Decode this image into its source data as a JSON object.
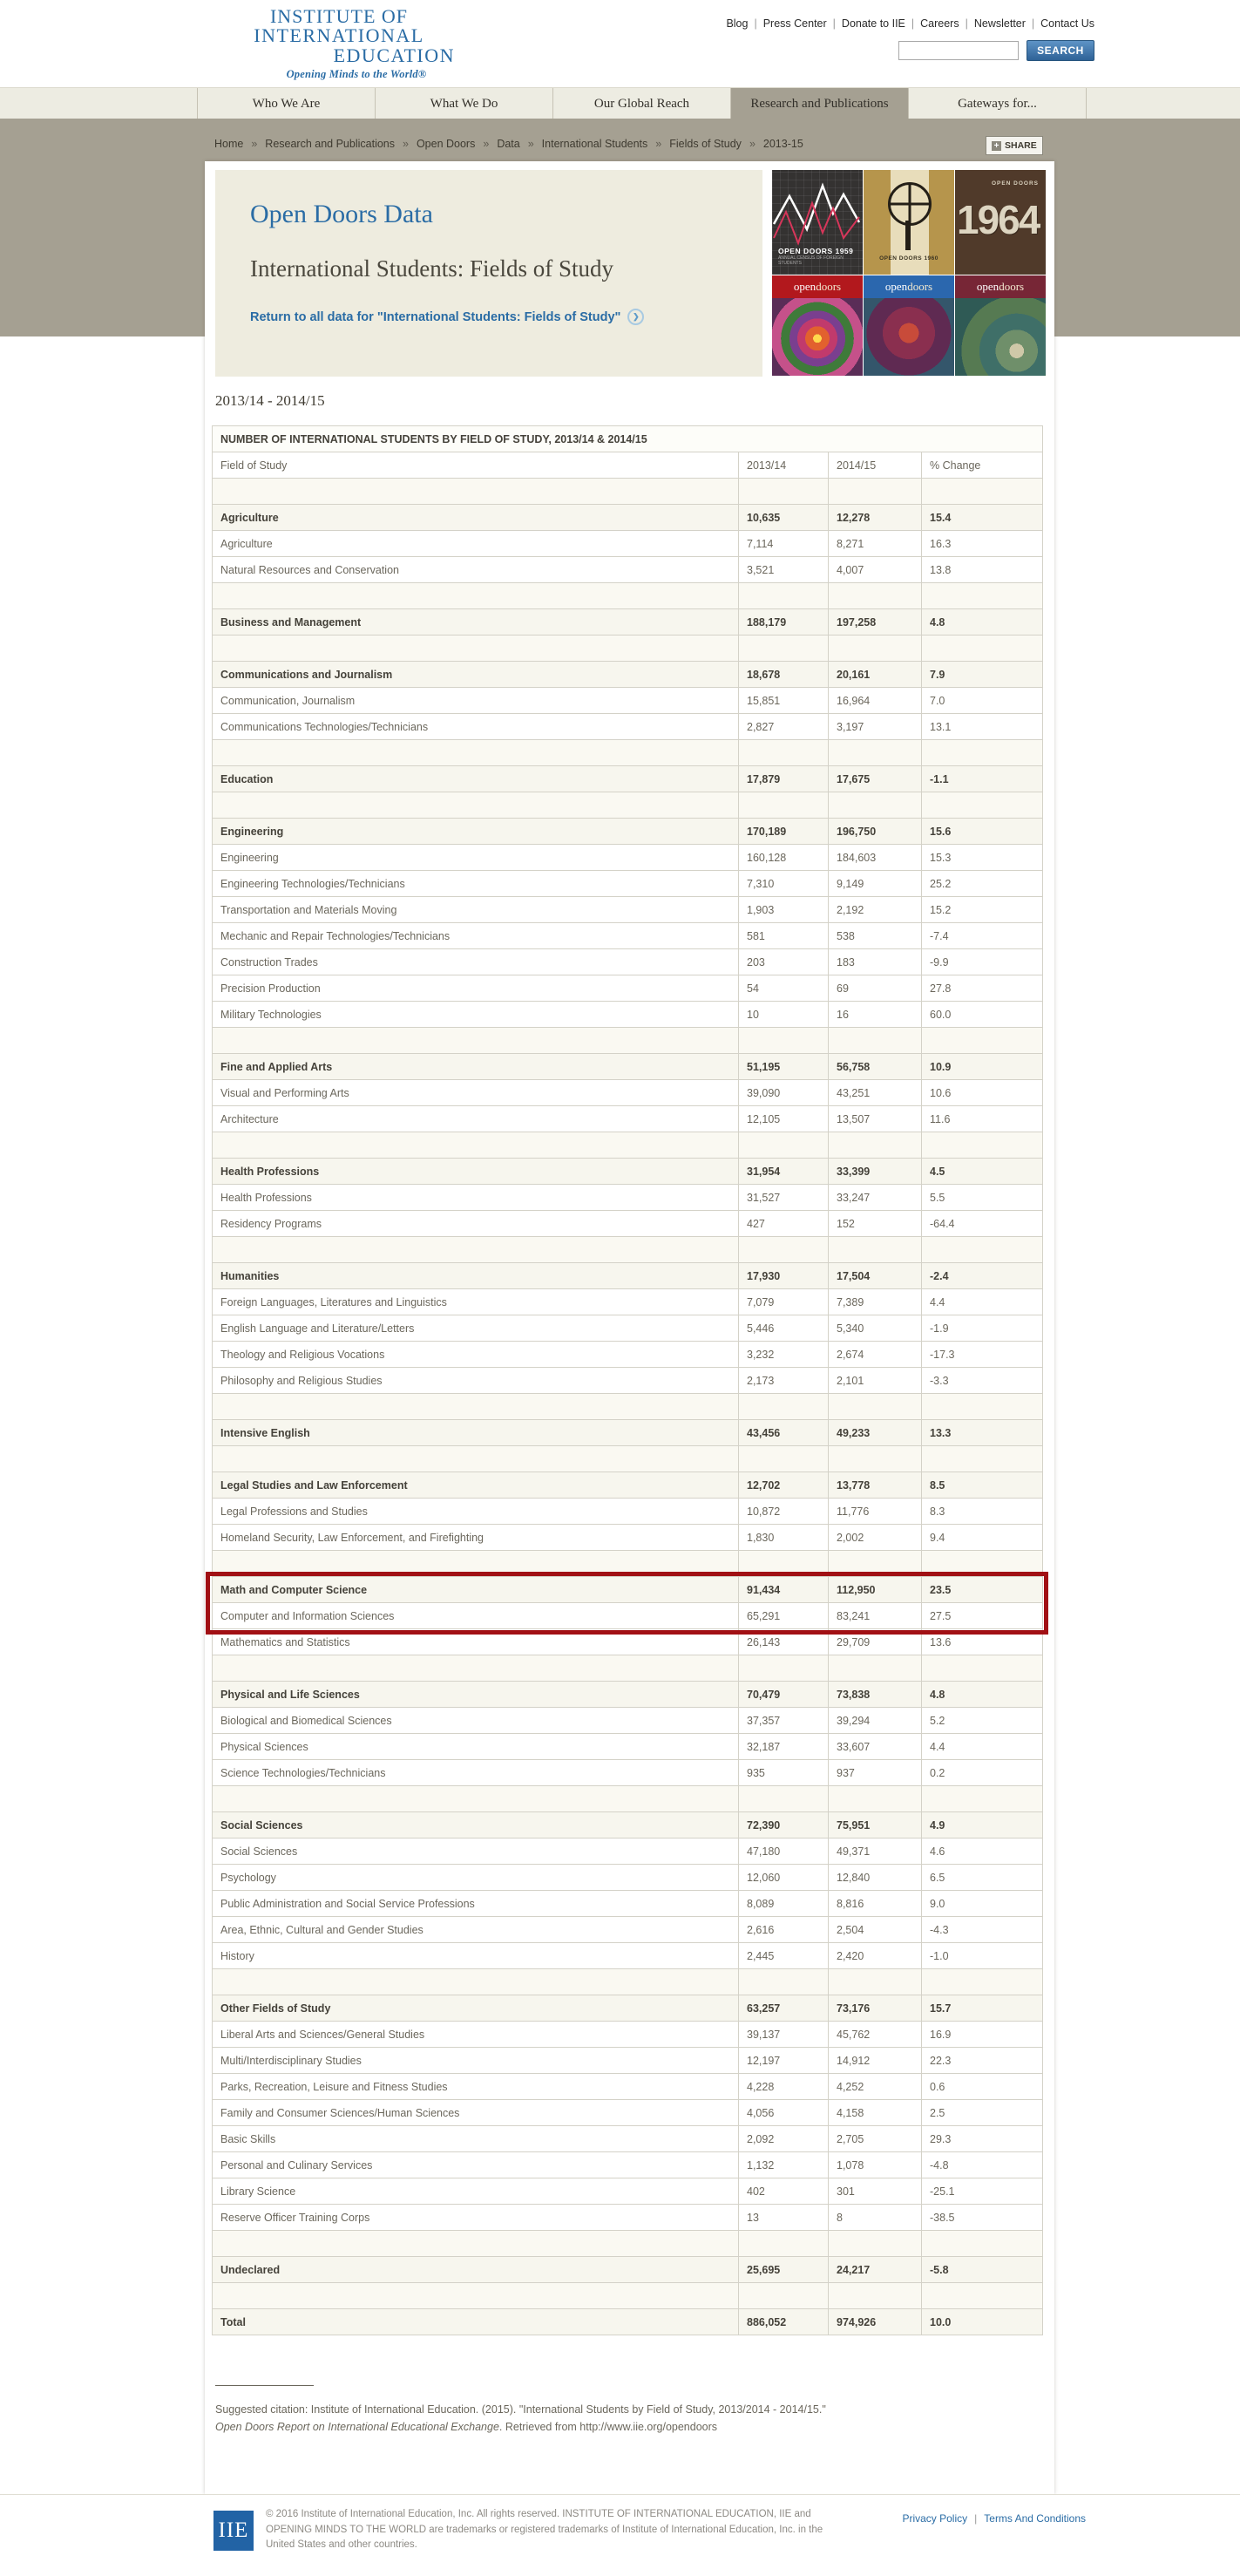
{
  "colors": {
    "accent_blue": "#2a6ca5",
    "band_taupe": "#a5a092",
    "highlight_red": "#a11014",
    "search_button_blue": "#2f6297",
    "hero_cream": "#eeecdf"
  },
  "logo": {
    "line1": "INSTITUTE OF",
    "line2": "INTERNATIONAL",
    "line3": "EDUCATION",
    "tagline": "Opening Minds to the World®"
  },
  "utility_nav": {
    "items": [
      {
        "label": "Blog"
      },
      {
        "label": "Press Center"
      },
      {
        "label": "Donate to IIE"
      },
      {
        "label": "Careers"
      },
      {
        "label": "Newsletter"
      },
      {
        "label": "Contact Us"
      }
    ]
  },
  "search": {
    "button_label": "SEARCH",
    "value": ""
  },
  "main_nav": {
    "items": [
      {
        "label": "Who We Are",
        "active": false
      },
      {
        "label": "What We Do",
        "active": false
      },
      {
        "label": "Our Global Reach",
        "active": false
      },
      {
        "label": "Research and Publications",
        "active": true
      },
      {
        "label": "Gateways for...",
        "active": false
      }
    ]
  },
  "breadcrumb": {
    "items": [
      {
        "label": "Home"
      },
      {
        "label": "Research and Publications"
      },
      {
        "label": "Open Doors"
      },
      {
        "label": "Data"
      },
      {
        "label": "International Students"
      },
      {
        "label": "Fields of Study"
      },
      {
        "label": "2013-15"
      }
    ]
  },
  "share": {
    "plus": "+",
    "label": "SHARE"
  },
  "hero": {
    "title": "Open Doors Data",
    "subtitle": "International Students: Fields of Study",
    "return_link": "Return to all data for \"International Students: Fields of Study\"",
    "arrow": "❯"
  },
  "covers": {
    "c1": {
      "label": "OPEN DOORS 1959",
      "sub": "ANNUAL CENSUS OF FOREIGN STUDENTS"
    },
    "c2": {
      "label": "OPEN DOORS 1960"
    },
    "c3": {
      "top": "OPEN DOORS",
      "big": "1964"
    },
    "c4": {
      "w1": "open",
      "w2": "doors"
    },
    "c5": {
      "w1": "open",
      "w2": "doors"
    },
    "c6": {
      "w1": "open",
      "w2": "doors"
    }
  },
  "year_heading": "2013/14 - 2014/15",
  "table": {
    "title": "NUMBER OF INTERNATIONAL STUDENTS BY FIELD OF STUDY, 2013/14 & 2014/15",
    "columns": [
      "Field of Study",
      "2013/14",
      "2014/15",
      "% Change"
    ],
    "rows": [
      {
        "type": "empty",
        "field": "",
        "y1": "",
        "y2": "",
        "chg": ""
      },
      {
        "type": "section",
        "field": "Agriculture",
        "y1": "10,635",
        "y2": "12,278",
        "chg": "15.4"
      },
      {
        "type": "sub",
        "field": "Agriculture",
        "y1": "7,114",
        "y2": "8,271",
        "chg": "16.3"
      },
      {
        "type": "sub",
        "field": "Natural Resources and Conservation",
        "y1": "3,521",
        "y2": "4,007",
        "chg": "13.8"
      },
      {
        "type": "empty",
        "field": "",
        "y1": "",
        "y2": "",
        "chg": ""
      },
      {
        "type": "section",
        "field": "Business and Management",
        "y1": "188,179",
        "y2": "197,258",
        "chg": "4.8"
      },
      {
        "type": "empty",
        "field": "",
        "y1": "",
        "y2": "",
        "chg": ""
      },
      {
        "type": "section",
        "field": "Communications and Journalism",
        "y1": "18,678",
        "y2": "20,161",
        "chg": "7.9"
      },
      {
        "type": "sub",
        "field": "Communication, Journalism",
        "y1": "15,851",
        "y2": "16,964",
        "chg": "7.0"
      },
      {
        "type": "sub",
        "field": "Communications Technologies/Technicians",
        "y1": "2,827",
        "y2": "3,197",
        "chg": "13.1"
      },
      {
        "type": "empty",
        "field": "",
        "y1": "",
        "y2": "",
        "chg": ""
      },
      {
        "type": "section",
        "field": "Education",
        "y1": "17,879",
        "y2": "17,675",
        "chg": "-1.1"
      },
      {
        "type": "empty",
        "field": "",
        "y1": "",
        "y2": "",
        "chg": ""
      },
      {
        "type": "section",
        "field": "Engineering",
        "y1": "170,189",
        "y2": "196,750",
        "chg": "15.6"
      },
      {
        "type": "sub",
        "field": "Engineering",
        "y1": "160,128",
        "y2": "184,603",
        "chg": "15.3"
      },
      {
        "type": "sub",
        "field": "Engineering Technologies/Technicians",
        "y1": "7,310",
        "y2": "9,149",
        "chg": "25.2"
      },
      {
        "type": "sub",
        "field": "Transportation and Materials Moving",
        "y1": "1,903",
        "y2": "2,192",
        "chg": "15.2"
      },
      {
        "type": "sub",
        "field": "Mechanic and Repair Technologies/Technicians",
        "y1": "581",
        "y2": "538",
        "chg": "-7.4"
      },
      {
        "type": "sub",
        "field": "Construction Trades",
        "y1": "203",
        "y2": "183",
        "chg": "-9.9"
      },
      {
        "type": "sub",
        "field": "Precision Production",
        "y1": "54",
        "y2": "69",
        "chg": "27.8"
      },
      {
        "type": "sub",
        "field": "Military Technologies",
        "y1": "10",
        "y2": "16",
        "chg": "60.0"
      },
      {
        "type": "empty",
        "field": "",
        "y1": "",
        "y2": "",
        "chg": ""
      },
      {
        "type": "section",
        "field": "Fine and Applied Arts",
        "y1": "51,195",
        "y2": "56,758",
        "chg": "10.9"
      },
      {
        "type": "sub",
        "field": "Visual and Performing Arts",
        "y1": "39,090",
        "y2": "43,251",
        "chg": "10.6"
      },
      {
        "type": "sub",
        "field": "Architecture",
        "y1": "12,105",
        "y2": "13,507",
        "chg": "11.6"
      },
      {
        "type": "empty",
        "field": "",
        "y1": "",
        "y2": "",
        "chg": ""
      },
      {
        "type": "section",
        "field": "Health Professions",
        "y1": "31,954",
        "y2": "33,399",
        "chg": "4.5"
      },
      {
        "type": "sub",
        "field": "Health Professions",
        "y1": "31,527",
        "y2": "33,247",
        "chg": "5.5"
      },
      {
        "type": "sub",
        "field": "Residency Programs",
        "y1": "427",
        "y2": "152",
        "chg": "-64.4"
      },
      {
        "type": "empty",
        "field": "",
        "y1": "",
        "y2": "",
        "chg": ""
      },
      {
        "type": "section",
        "field": "Humanities",
        "y1": "17,930",
        "y2": "17,504",
        "chg": "-2.4"
      },
      {
        "type": "sub",
        "field": "Foreign Languages, Literatures and Linguistics",
        "y1": "7,079",
        "y2": "7,389",
        "chg": "4.4"
      },
      {
        "type": "sub",
        "field": "English Language and Literature/Letters",
        "y1": "5,446",
        "y2": "5,340",
        "chg": "-1.9"
      },
      {
        "type": "sub",
        "field": "Theology and Religious Vocations",
        "y1": "3,232",
        "y2": "2,674",
        "chg": "-17.3"
      },
      {
        "type": "sub",
        "field": "Philosophy and Religious Studies",
        "y1": "2,173",
        "y2": "2,101",
        "chg": "-3.3"
      },
      {
        "type": "empty",
        "field": "",
        "y1": "",
        "y2": "",
        "chg": ""
      },
      {
        "type": "section",
        "field": "Intensive English",
        "y1": "43,456",
        "y2": "49,233",
        "chg": "13.3"
      },
      {
        "type": "empty",
        "field": "",
        "y1": "",
        "y2": "",
        "chg": ""
      },
      {
        "type": "section",
        "field": "Legal Studies and Law Enforcement",
        "y1": "12,702",
        "y2": "13,778",
        "chg": "8.5"
      },
      {
        "type": "sub",
        "field": "Legal Professions and Studies",
        "y1": "10,872",
        "y2": "11,776",
        "chg": "8.3"
      },
      {
        "type": "sub",
        "field": "Homeland Security, Law Enforcement, and Firefighting",
        "y1": "1,830",
        "y2": "2,002",
        "chg": "9.4"
      },
      {
        "type": "empty",
        "field": "",
        "y1": "",
        "y2": "",
        "chg": ""
      },
      {
        "type": "section",
        "highlight": true,
        "field": "Math and Computer Science",
        "y1": "91,434",
        "y2": "112,950",
        "chg": "23.5"
      },
      {
        "type": "sub",
        "highlight": true,
        "field": "Computer and Information Sciences",
        "y1": "65,291",
        "y2": "83,241",
        "chg": "27.5"
      },
      {
        "type": "sub",
        "field": "Mathematics and Statistics",
        "y1": "26,143",
        "y2": "29,709",
        "chg": "13.6"
      },
      {
        "type": "empty",
        "field": "",
        "y1": "",
        "y2": "",
        "chg": ""
      },
      {
        "type": "section",
        "field": "Physical and Life Sciences",
        "y1": "70,479",
        "y2": "73,838",
        "chg": "4.8"
      },
      {
        "type": "sub",
        "field": "Biological and Biomedical Sciences",
        "y1": "37,357",
        "y2": "39,294",
        "chg": "5.2"
      },
      {
        "type": "sub",
        "field": "Physical Sciences",
        "y1": "32,187",
        "y2": "33,607",
        "chg": "4.4"
      },
      {
        "type": "sub",
        "field": "Science Technologies/Technicians",
        "y1": "935",
        "y2": "937",
        "chg": "0.2"
      },
      {
        "type": "empty",
        "field": "",
        "y1": "",
        "y2": "",
        "chg": ""
      },
      {
        "type": "section",
        "field": "Social Sciences",
        "y1": "72,390",
        "y2": "75,951",
        "chg": "4.9"
      },
      {
        "type": "sub",
        "field": "Social Sciences",
        "y1": "47,180",
        "y2": "49,371",
        "chg": "4.6"
      },
      {
        "type": "sub",
        "field": "Psychology",
        "y1": "12,060",
        "y2": "12,840",
        "chg": "6.5"
      },
      {
        "type": "sub",
        "field": "Public Administration and Social Service Professions",
        "y1": "8,089",
        "y2": "8,816",
        "chg": "9.0"
      },
      {
        "type": "sub",
        "field": "Area, Ethnic, Cultural and Gender Studies",
        "y1": "2,616",
        "y2": "2,504",
        "chg": "-4.3"
      },
      {
        "type": "sub",
        "field": "History",
        "y1": "2,445",
        "y2": "2,420",
        "chg": "-1.0"
      },
      {
        "type": "empty",
        "field": "",
        "y1": "",
        "y2": "",
        "chg": ""
      },
      {
        "type": "section",
        "field": "Other Fields of Study",
        "y1": "63,257",
        "y2": "73,176",
        "chg": "15.7"
      },
      {
        "type": "sub",
        "field": "Liberal Arts and Sciences/General Studies",
        "y1": "39,137",
        "y2": "45,762",
        "chg": "16.9"
      },
      {
        "type": "sub",
        "field": "Multi/Interdisciplinary Studies",
        "y1": "12,197",
        "y2": "14,912",
        "chg": "22.3"
      },
      {
        "type": "sub",
        "field": "Parks, Recreation, Leisure and Fitness Studies",
        "y1": "4,228",
        "y2": "4,252",
        "chg": "0.6"
      },
      {
        "type": "sub",
        "field": "Family and Consumer Sciences/Human Sciences",
        "y1": "4,056",
        "y2": "4,158",
        "chg": "2.5"
      },
      {
        "type": "sub",
        "field": "Basic Skills",
        "y1": "2,092",
        "y2": "2,705",
        "chg": "29.3"
      },
      {
        "type": "sub",
        "field": "Personal and Culinary Services",
        "y1": "1,132",
        "y2": "1,078",
        "chg": "-4.8"
      },
      {
        "type": "sub",
        "field": "Library Science",
        "y1": "402",
        "y2": "301",
        "chg": "-25.1"
      },
      {
        "type": "sub",
        "field": "Reserve Officer Training Corps",
        "y1": "13",
        "y2": "8",
        "chg": "-38.5"
      },
      {
        "type": "empty",
        "field": "",
        "y1": "",
        "y2": "",
        "chg": ""
      },
      {
        "type": "section",
        "field": "Undeclared",
        "y1": "25,695",
        "y2": "24,217",
        "chg": "-5.8"
      },
      {
        "type": "empty",
        "field": "",
        "y1": "",
        "y2": "",
        "chg": ""
      },
      {
        "type": "total",
        "field": "Total",
        "y1": "886,052",
        "y2": "974,926",
        "chg": "10.0"
      }
    ]
  },
  "citation": {
    "pre": "Suggested citation: Institute of International Education. (2015). \"International Students by Field of Study, 2013/2014 - 2014/15.\" ",
    "italic": "Open Doors Report on International Educational Exchange",
    "post": ". Retrieved from http://www.iie.org/opendoors"
  },
  "footer": {
    "logo_text": "IIE",
    "copyright": "© 2016 Institute of International Education, Inc. All rights reserved. INSTITUTE OF INTERNATIONAL EDUCATION, IIE and OPENING MINDS TO THE WORLD are trademarks or registered trademarks of Institute of International Education, Inc. in the United States and other countries.",
    "links": [
      {
        "label": "Privacy Policy"
      },
      {
        "label": "Terms And Conditions"
      }
    ]
  }
}
